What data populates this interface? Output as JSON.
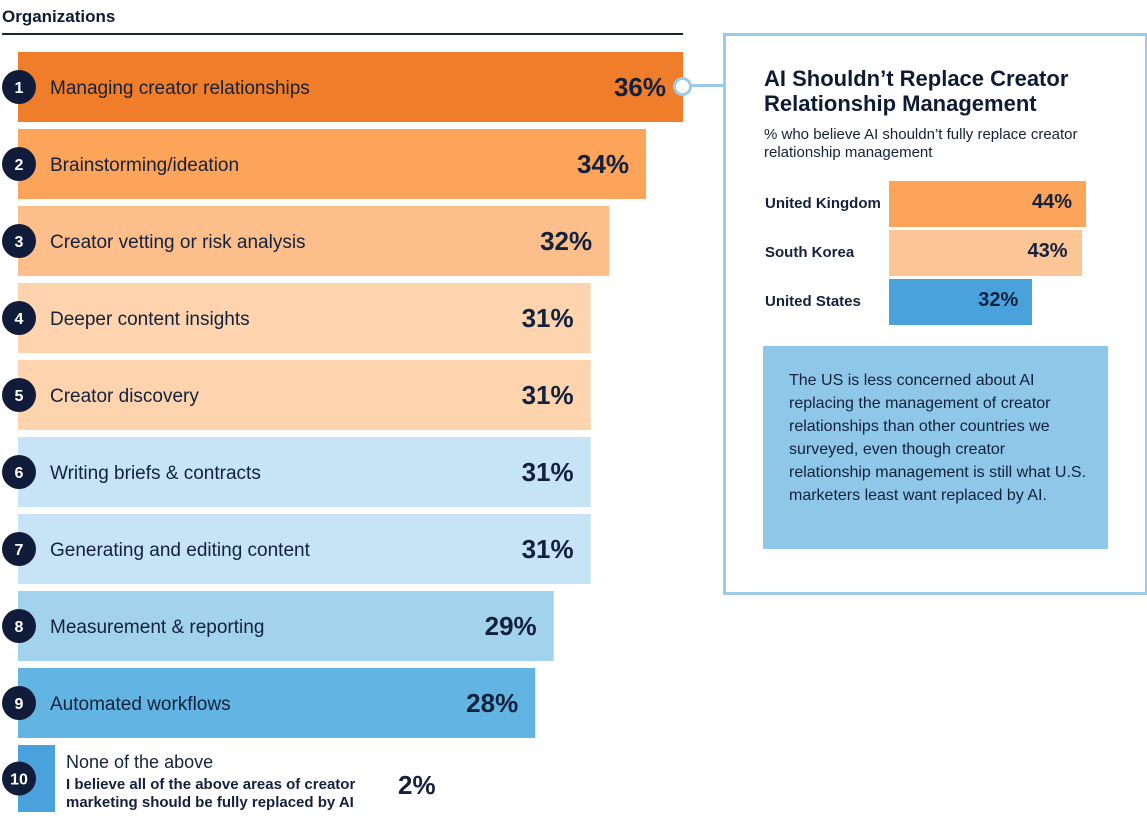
{
  "header": {
    "title": "Organizations"
  },
  "chart_data": {
    "type": "bar",
    "orientation": "horizontal",
    "categories": [
      "Managing creator relationships",
      "Brainstorming/ideation",
      "Creator vetting or risk analysis",
      "Deeper content insights",
      "Creator discovery",
      "Writing briefs & contracts",
      "Generating and editing content",
      "Measurement & reporting",
      "Automated workflows",
      "None of the above"
    ],
    "ranks": [
      "1",
      "2",
      "3",
      "4",
      "5",
      "6",
      "7",
      "8",
      "9",
      "10"
    ],
    "values": [
      36,
      34,
      32,
      31,
      31,
      31,
      31,
      29,
      28,
      2
    ],
    "value_labels": [
      "36%",
      "34%",
      "32%",
      "31%",
      "31%",
      "31%",
      "31%",
      "29%",
      "28%",
      "2%"
    ],
    "colors": [
      "#ef7d29",
      "#fba45a",
      "#fcbf8c",
      "#fdd4ae",
      "#fdd4ae",
      "#c6e4f5",
      "#c6e4f5",
      "#a3d2ec",
      "#62b5e3",
      "#4aa2dc"
    ],
    "xlim": [
      0,
      36
    ]
  },
  "last_item": {
    "title": "None of the above",
    "description": "I believe all of the above areas of creator marketing should be fully replaced by AI",
    "value_label": "2%"
  },
  "side_panel": {
    "title": "AI Shouldn’t Replace Creator Relationship Management",
    "subtitle": "% who believe AI shouldn’t fully replace creator relationship management",
    "chart_data": {
      "type": "bar",
      "orientation": "horizontal",
      "categories": [
        "United Kingdom",
        "South Korea",
        "United States"
      ],
      "values": [
        44,
        43,
        32
      ],
      "value_labels": [
        "44%",
        "43%",
        "32%"
      ],
      "colors": [
        "#fba45a",
        "#fcc596",
        "#4aa2dc"
      ],
      "xlim": [
        0,
        44
      ]
    },
    "note": "The US is less concerned about AI replacing the management of creator relationships than other countries we surveyed, even though creator relationship management is still what U.S. marketers least want replaced by AI.",
    "note_color": "#8ec7e8",
    "border_color": "#9ccbe8"
  },
  "rank_badge_color": "#101c3a"
}
